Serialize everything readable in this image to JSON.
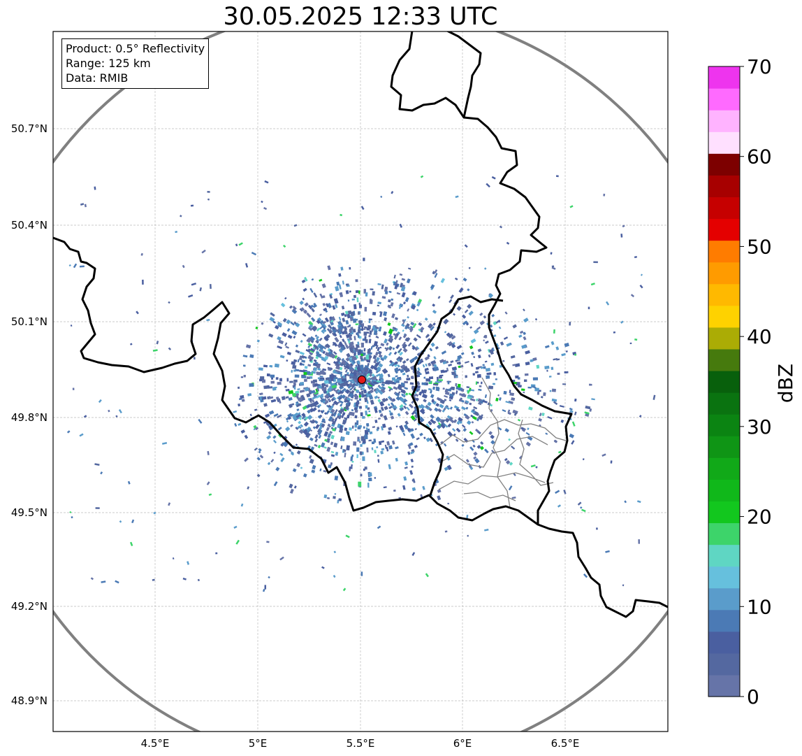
{
  "title": "30.05.2025 12:33 UTC",
  "info": {
    "product": "Product: 0.5° Reflectivity",
    "range": "Range: 125 km",
    "data": "Data: RMIB"
  },
  "axes": {
    "lon_ticks": [
      "4.5°E",
      "5°E",
      "5.5°E",
      "6°E",
      "6.5°E"
    ],
    "lat_ticks": [
      "50.7°N",
      "50.4°N",
      "50.1°N",
      "49.8°N",
      "49.5°N",
      "49.2°N",
      "48.9°N"
    ]
  },
  "colorbar": {
    "label": "dBZ",
    "ticks": [
      "70",
      "60",
      "50",
      "40",
      "30",
      "20",
      "10",
      "0"
    ],
    "min": 0,
    "max": 70,
    "colors": [
      "#6674a8",
      "#5468a0",
      "#4a5fa0",
      "#4b7ab5",
      "#5a9ccb",
      "#66c0dd",
      "#5fd6c3",
      "#3dd46a",
      "#12c71e",
      "#10b81a",
      "#11a918",
      "#0f9515",
      "#0b8412",
      "#0a7310",
      "#08600c",
      "#467a0d",
      "#abac05",
      "#fed200",
      "#ffb900",
      "#ff9b00",
      "#ff7c00",
      "#e40000",
      "#c60000",
      "#a70000",
      "#7d0000",
      "#ffe0ff",
      "#ffb3ff",
      "#ff6aff",
      "#ee34ee"
    ]
  },
  "radar": {
    "site_lon": 5.505,
    "site_lat": 49.915,
    "range_km": 125,
    "site_color": "#e31b1b",
    "range_ring_color": "#808080"
  }
}
